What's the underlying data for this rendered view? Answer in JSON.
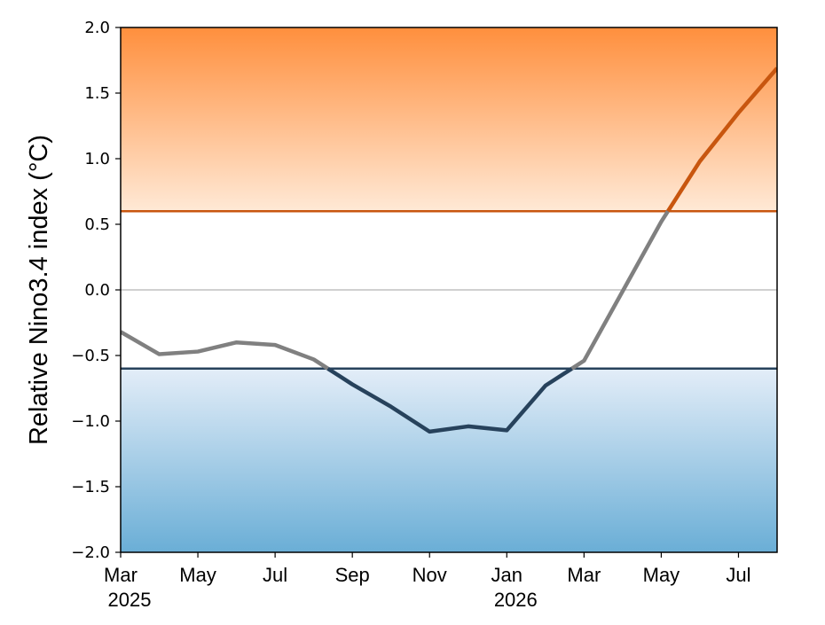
{
  "chart_data": {
    "type": "line",
    "title": "",
    "xlabel": "",
    "ylabel": "Relative Nino3.4 index (°C)",
    "ylim": [
      -2.0,
      2.0
    ],
    "yticks": [
      "2.0",
      "1.5",
      "1.0",
      "0.5",
      "0.0",
      "−0.5",
      "−1.0",
      "−1.5",
      "−2.0"
    ],
    "ytick_values": [
      2.0,
      1.5,
      1.0,
      0.5,
      0.0,
      -0.5,
      -1.0,
      -1.5,
      -2.0
    ],
    "xlim": [
      "2025-03",
      "2026-08"
    ],
    "xticks": [
      {
        "date": "2025-03",
        "label": "Mar",
        "year": "2025"
      },
      {
        "date": "2025-05",
        "label": "May",
        "year": ""
      },
      {
        "date": "2025-07",
        "label": "Jul",
        "year": ""
      },
      {
        "date": "2025-09",
        "label": "Sep",
        "year": ""
      },
      {
        "date": "2025-11",
        "label": "Nov",
        "year": ""
      },
      {
        "date": "2026-01",
        "label": "Jan",
        "year": "2026"
      },
      {
        "date": "2026-03",
        "label": "Mar",
        "year": ""
      },
      {
        "date": "2026-05",
        "label": "May",
        "year": ""
      },
      {
        "date": "2026-07",
        "label": "Jul",
        "year": ""
      }
    ],
    "x": [
      "2025-03",
      "2025-04",
      "2025-05",
      "2025-06",
      "2025-07",
      "2025-08",
      "2025-09",
      "2025-10",
      "2025-11",
      "2025-12",
      "2026-01",
      "2026-02",
      "2026-03",
      "2026-04",
      "2026-05",
      "2026-06",
      "2026-07",
      "2026-08"
    ],
    "series": [
      {
        "values": [
          -0.32,
          -0.49,
          -0.47,
          -0.4,
          -0.42,
          -0.53,
          -0.72,
          -0.89,
          -1.08,
          -1.04,
          -1.07,
          -0.73,
          -0.54,
          -0.01,
          0.52,
          0.98,
          1.35,
          1.69
        ]
      }
    ],
    "thresholds": {
      "el_nino": 0.6,
      "la_nina": -0.6,
      "zero": 0.0
    },
    "grid": false,
    "legend": "none",
    "colors": {
      "neutral_line": "#808080",
      "la_nina_line": "#27425c",
      "el_nino_line": "#c8560f",
      "el_nino_threshold": "#c8560f",
      "la_nina_threshold": "#27425c",
      "warm_fill_top": "#ff8f3d",
      "warm_fill_bottom": "#ffe9d6",
      "cool_fill_top": "#e3edf8",
      "cool_fill_bottom": "#6aaed6",
      "zero_line": "#808080"
    }
  }
}
